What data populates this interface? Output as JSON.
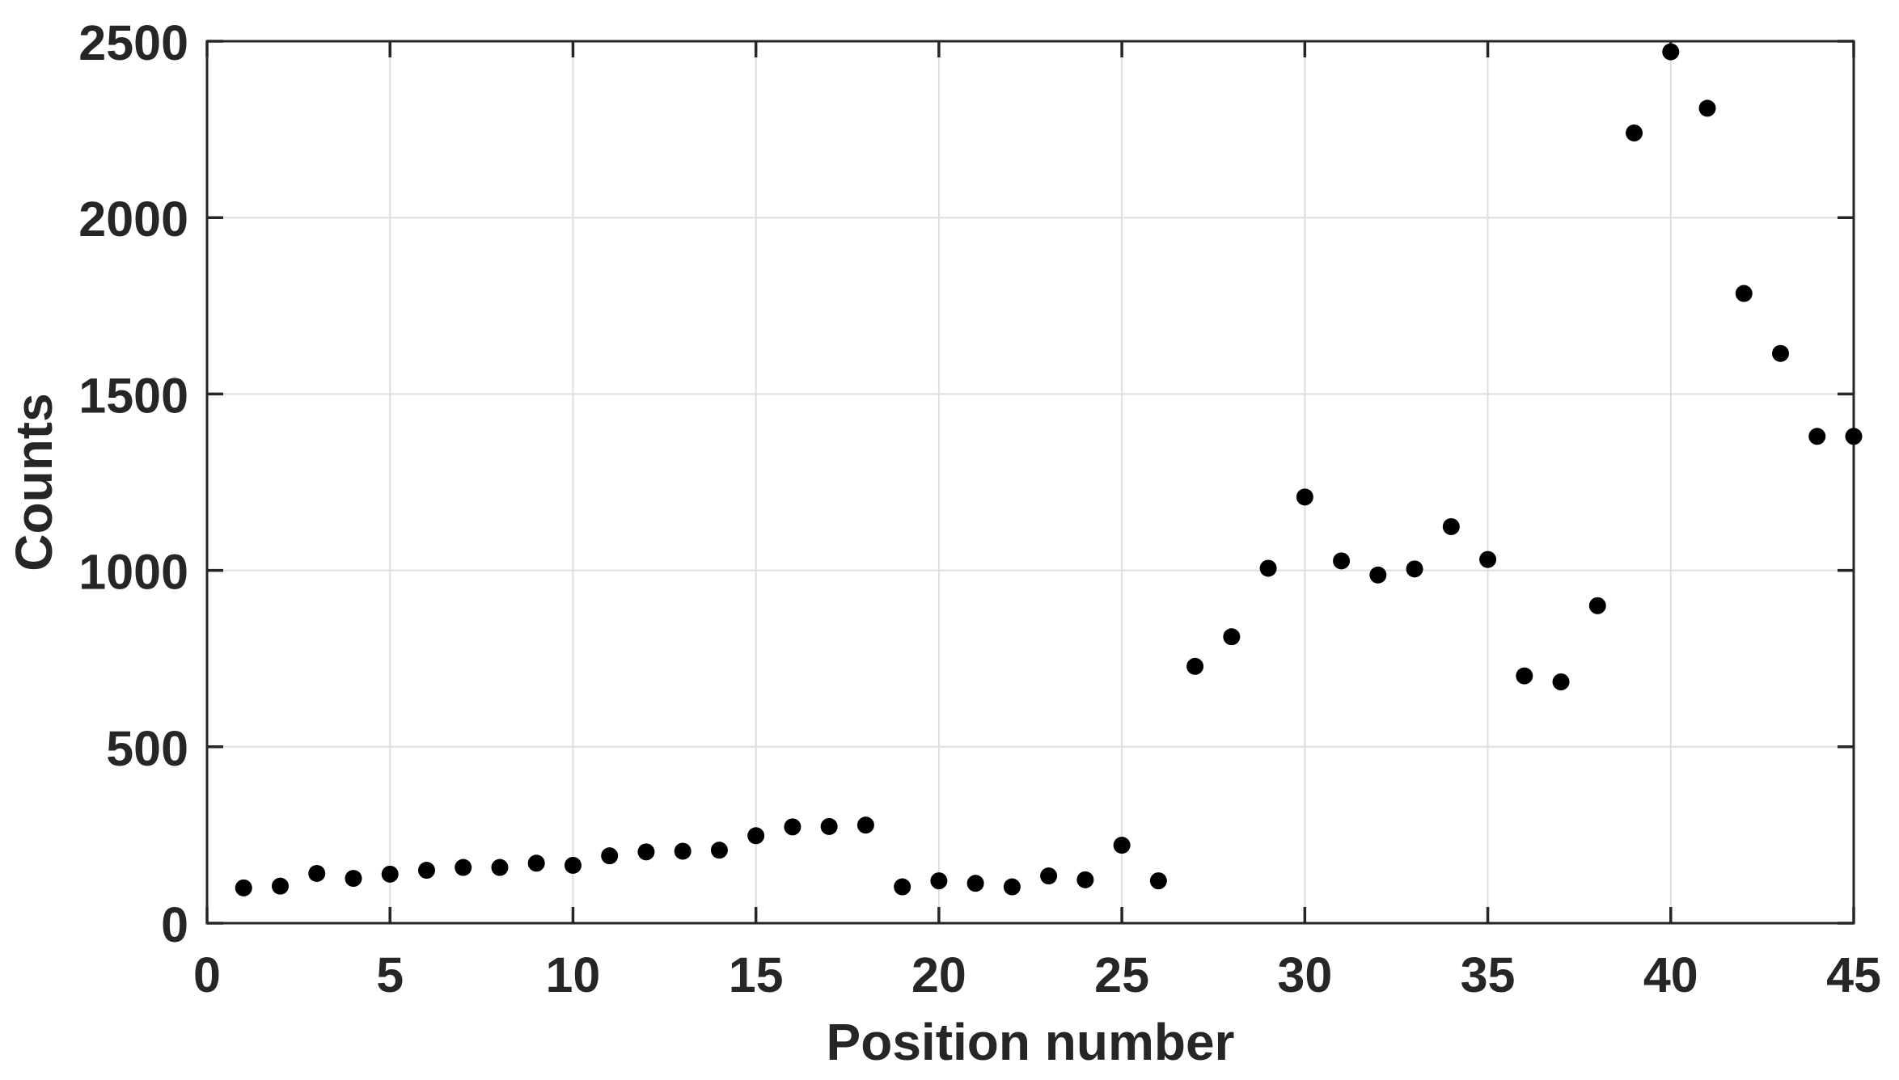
{
  "figure": {
    "background": "#ffffff"
  },
  "chart_data": {
    "type": "scatter",
    "title": "",
    "xlabel": "Position number",
    "ylabel": "Counts",
    "xlim": [
      0,
      45
    ],
    "ylim": [
      0,
      2500
    ],
    "xticks": [
      0,
      5,
      10,
      15,
      20,
      25,
      30,
      35,
      40,
      45
    ],
    "yticks": [
      0,
      500,
      1000,
      1500,
      2000,
      2500
    ],
    "grid": true,
    "legend": "none",
    "marker": {
      "shape": "filled-circle",
      "color": "#000000",
      "radius_px": 10.5
    },
    "colors": {
      "axis": "#262626",
      "tick_label": "#262626",
      "grid": "#dedede",
      "background": "#ffffff"
    },
    "x": [
      1,
      2,
      3,
      4,
      5,
      6,
      7,
      8,
      9,
      10,
      11,
      12,
      13,
      14,
      15,
      16,
      17,
      18,
      19,
      20,
      21,
      22,
      23,
      24,
      25,
      26,
      27,
      28,
      29,
      30,
      31,
      32,
      33,
      34,
      35,
      36,
      37,
      38,
      39,
      40,
      41,
      42,
      43,
      44,
      45
    ],
    "y": [
      100,
      105,
      141,
      127,
      139,
      150,
      158,
      158,
      170,
      164,
      191,
      202,
      204,
      207,
      248,
      273,
      274,
      278,
      103,
      120,
      113,
      103,
      134,
      123,
      221,
      120,
      728,
      812,
      1006,
      1208,
      1027,
      987,
      1004,
      1124,
      1031,
      701,
      684,
      900,
      2240,
      2470,
      2310,
      1785,
      1615,
      1380,
      1380
    ]
  }
}
